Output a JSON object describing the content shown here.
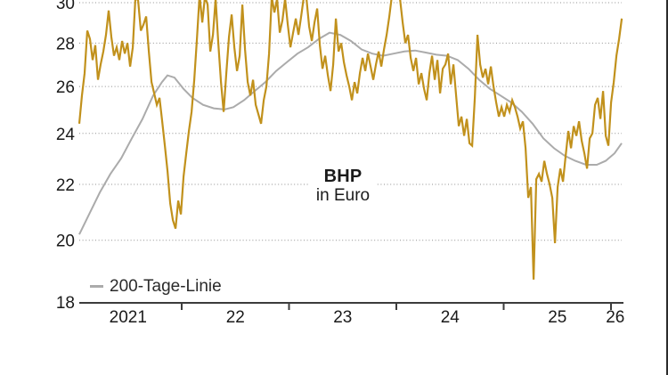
{
  "legend": {
    "ma_label": "200-Tage-Linie"
  },
  "colors": {
    "price_line": "#C1911C",
    "ma_line": "#ABABAB",
    "grid": "#8F8F8F",
    "axis": "#3C3C3C",
    "text": "#1A1A1A",
    "background": "#FFFFFF",
    "frame_border": "#2B2B2B"
  },
  "chart_data": {
    "type": "line",
    "title": "BHP",
    "subtitle": "in Euro",
    "xlabel": "",
    "ylabel": "",
    "yscale": "log",
    "ylim": [
      18,
      30
    ],
    "xlim": [
      2021.05,
      2026.1
    ],
    "grid": "dotted-horizontal",
    "legend_position": "bottom-left",
    "y_gridlines": [
      30,
      28,
      26,
      24,
      22,
      20
    ],
    "y_axis_labels": [
      30,
      28,
      26,
      24,
      22,
      20,
      18
    ],
    "x_ticks": [
      2022,
      2023,
      2024,
      2025,
      2026
    ],
    "x_tick_labels": [
      {
        "label": "2021",
        "t": 2021.5
      },
      {
        "label": "22",
        "t": 2022.5
      },
      {
        "label": "23",
        "t": 2023.5
      },
      {
        "label": "24",
        "t": 2024.5
      },
      {
        "label": "25",
        "t": 2025.5
      },
      {
        "label": "26",
        "t": 2026.04
      }
    ],
    "note": "Price peaks above 30 are clipped at the top edge of the image",
    "series": [
      {
        "name": "BHP",
        "role": "price",
        "color": "#C1911C",
        "width": 2.2,
        "t0": 2021.046,
        "dt": 0.0249,
        "values": [
          24.4,
          25.6,
          26.6,
          28.6,
          28.2,
          27.2,
          27.9,
          26.3,
          27.0,
          27.6,
          28.4,
          29.6,
          28.3,
          27.4,
          27.8,
          27.2,
          28.1,
          27.5,
          28.0,
          26.9,
          27.8,
          30.3,
          30.1,
          28.6,
          28.9,
          29.3,
          27.6,
          26.2,
          25.7,
          25.2,
          25.5,
          24.5,
          23.5,
          22.5,
          21.3,
          20.7,
          20.4,
          21.4,
          20.9,
          22.3,
          23.2,
          24.1,
          24.9,
          26.3,
          28.2,
          30.4,
          29.0,
          30.3,
          29.9,
          27.6,
          28.4,
          30.2,
          28.0,
          26.2,
          24.9,
          26.6,
          28.3,
          29.4,
          27.8,
          26.7,
          27.4,
          29.9,
          27.7,
          26.2,
          25.6,
          26.3,
          25.2,
          24.8,
          24.4,
          25.4,
          26.0,
          27.5,
          30.3,
          29.5,
          30.2,
          28.5,
          29.1,
          30.2,
          28.9,
          27.8,
          28.5,
          29.2,
          28.4,
          29.3,
          30.3,
          30.2,
          28.8,
          28.1,
          29.0,
          29.7,
          27.9,
          26.8,
          27.4,
          26.5,
          25.8,
          27.0,
          29.2,
          27.6,
          28.0,
          27.1,
          26.5,
          26.0,
          25.4,
          26.2,
          25.7,
          26.6,
          27.3,
          26.7,
          27.5,
          26.9,
          26.3,
          27.0,
          27.6,
          26.9,
          27.7,
          28.4,
          29.3,
          30.4,
          30.3,
          30.3,
          30.2,
          29.0,
          28.0,
          28.4,
          27.3,
          26.7,
          27.3,
          26.1,
          26.6,
          25.9,
          25.4,
          26.6,
          27.4,
          26.3,
          27.2,
          25.7,
          26.8,
          27.0,
          27.5,
          26.1,
          27.0,
          25.6,
          24.3,
          24.7,
          23.9,
          24.6,
          23.6,
          23.5,
          25.5,
          28.4,
          27.0,
          26.4,
          26.8,
          26.1,
          26.9,
          26.0,
          25.3,
          24.7,
          25.1,
          24.7,
          25.2,
          24.9,
          25.4,
          25.1,
          24.7,
          24.2,
          24.5,
          23.4,
          21.5,
          21.9,
          18.7,
          22.2,
          22.4,
          22.1,
          22.9,
          22.4,
          22.0,
          21.5,
          19.9,
          21.9,
          22.6,
          22.1,
          23.1,
          24.1,
          23.4,
          24.3,
          23.9,
          24.5,
          23.7,
          23.2,
          22.6,
          23.8,
          24.0,
          25.2,
          25.5,
          24.6,
          25.8,
          23.9,
          23.5,
          25.3,
          26.2,
          27.4,
          28.2,
          29.2
        ]
      },
      {
        "name": "200-Tage-Linie",
        "role": "moving-average",
        "color": "#ABABAB",
        "width": 2,
        "points": [
          [
            2021.046,
            20.2
          ],
          [
            2021.137,
            20.9
          ],
          [
            2021.237,
            21.7
          ],
          [
            2021.336,
            22.4
          ],
          [
            2021.436,
            23.0
          ],
          [
            2021.535,
            23.8
          ],
          [
            2021.635,
            24.6
          ],
          [
            2021.734,
            25.6
          ],
          [
            2021.817,
            26.2
          ],
          [
            2021.867,
            26.5
          ],
          [
            2021.933,
            26.4
          ],
          [
            2022.017,
            25.9
          ],
          [
            2022.1,
            25.5
          ],
          [
            2022.199,
            25.2
          ],
          [
            2022.299,
            25.05
          ],
          [
            2022.398,
            25.0
          ],
          [
            2022.481,
            25.1
          ],
          [
            2022.581,
            25.4
          ],
          [
            2022.68,
            25.8
          ],
          [
            2022.78,
            26.2
          ],
          [
            2022.88,
            26.7
          ],
          [
            2022.979,
            27.1
          ],
          [
            2023.079,
            27.5
          ],
          [
            2023.178,
            27.8
          ],
          [
            2023.278,
            28.2
          ],
          [
            2023.378,
            28.5
          ],
          [
            2023.477,
            28.4
          ],
          [
            2023.577,
            28.1
          ],
          [
            2023.676,
            27.7
          ],
          [
            2023.776,
            27.5
          ],
          [
            2023.876,
            27.4
          ],
          [
            2023.975,
            27.5
          ],
          [
            2024.075,
            27.6
          ],
          [
            2024.174,
            27.65
          ],
          [
            2024.274,
            27.55
          ],
          [
            2024.373,
            27.45
          ],
          [
            2024.473,
            27.4
          ],
          [
            2024.572,
            27.2
          ],
          [
            2024.672,
            26.8
          ],
          [
            2024.772,
            26.3
          ],
          [
            2024.871,
            25.9
          ],
          [
            2024.971,
            25.6
          ],
          [
            2025.071,
            25.3
          ],
          [
            2025.17,
            24.9
          ],
          [
            2025.27,
            24.4
          ],
          [
            2025.37,
            23.8
          ],
          [
            2025.469,
            23.4
          ],
          [
            2025.569,
            23.1
          ],
          [
            2025.668,
            22.9
          ],
          [
            2025.768,
            22.75
          ],
          [
            2025.867,
            22.75
          ],
          [
            2025.95,
            22.9
          ],
          [
            2026.033,
            23.2
          ],
          [
            2026.1,
            23.6
          ]
        ]
      }
    ]
  }
}
